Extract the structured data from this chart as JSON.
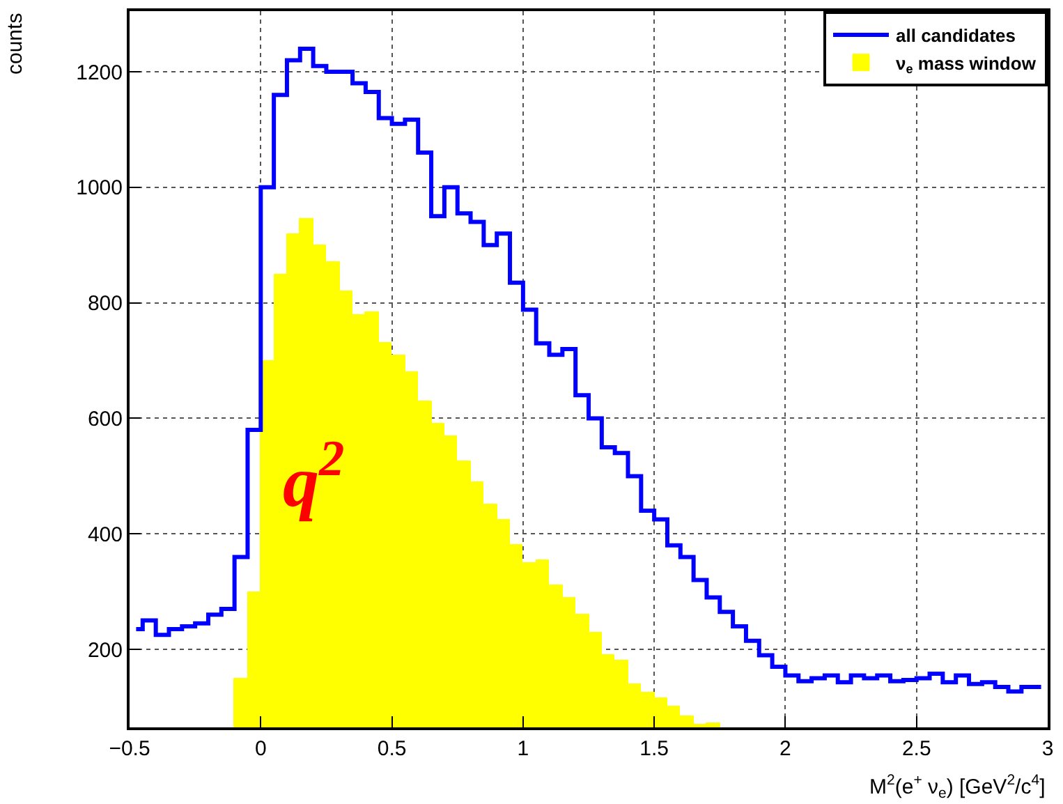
{
  "chart_data": {
    "type": "histogram",
    "xlabel": "M$^{2}$(e$^{+}$ ν$_{e}$) [GeV$^{2}$/c$^{4}$]",
    "ylabel": "counts",
    "bins": [
      -0.5,
      -0.45,
      -0.4,
      -0.35,
      -0.3,
      -0.25,
      -0.2,
      -0.15,
      -0.1,
      -0.05,
      0,
      0.05,
      0.1,
      0.15,
      0.2,
      0.25,
      0.3,
      0.35,
      0.4,
      0.45,
      0.5,
      0.55,
      0.6,
      0.65,
      0.7,
      0.75,
      0.8,
      0.85,
      0.9,
      0.95,
      1,
      1.05,
      1.1,
      1.15,
      1.2,
      1.25,
      1.3,
      1.35,
      1.4,
      1.45,
      1.5,
      1.55,
      1.6,
      1.65,
      1.7,
      1.75,
      1.8,
      1.85,
      1.9,
      1.95,
      2,
      2.05,
      2.1,
      2.15,
      2.2,
      2.25,
      2.3,
      2.35,
      2.4,
      2.45,
      2.5,
      2.55,
      2.6,
      2.65,
      2.7,
      2.75,
      2.8,
      2.85,
      2.9,
      2.95,
      3
    ],
    "series": [
      {
        "name": "all candidates",
        "type": "step",
        "color": "#0000ff",
        "x": [
          -0.475,
          -0.425,
          -0.375,
          -0.325,
          -0.275,
          -0.225,
          -0.175,
          -0.125,
          -0.075,
          -0.025,
          0.025,
          0.075,
          0.125,
          0.175,
          0.225,
          0.275,
          0.325,
          0.375,
          0.425,
          0.475,
          0.525,
          0.575,
          0.625,
          0.675,
          0.725,
          0.775,
          0.825,
          0.875,
          0.925,
          0.975,
          1.025,
          1.075,
          1.125,
          1.175,
          1.225,
          1.275,
          1.325,
          1.375,
          1.425,
          1.475,
          1.525,
          1.575,
          1.625,
          1.675,
          1.725,
          1.775,
          1.825,
          1.875,
          1.925,
          1.975,
          2.025,
          2.075,
          2.125,
          2.175,
          2.225,
          2.275,
          2.325,
          2.375,
          2.425,
          2.475,
          2.525,
          2.575,
          2.625,
          2.675,
          2.725,
          2.775,
          2.825,
          2.875,
          2.925,
          2.975
        ],
        "values": [
          235,
          250,
          225,
          235,
          240,
          245,
          260,
          270,
          360,
          580,
          1000,
          1160,
          1220,
          1240,
          1210,
          1200,
          1200,
          1180,
          1165,
          1120,
          1110,
          1117,
          1060,
          950,
          1000,
          955,
          940,
          900,
          920,
          835,
          788,
          730,
          710,
          720,
          640,
          600,
          550,
          540,
          500,
          440,
          425,
          380,
          360,
          320,
          290,
          265,
          240,
          215,
          190,
          170,
          155,
          145,
          150,
          155,
          143,
          155,
          150,
          155,
          145,
          147,
          150,
          158,
          143,
          155,
          140,
          143,
          135,
          127,
          135,
          135
        ]
      },
      {
        "name": "ν$_{e}$ mass window",
        "type": "histogram",
        "color": "#ffff00",
        "values": [
          null,
          null,
          null,
          null,
          null,
          null,
          null,
          null,
          150,
          300,
          700,
          850,
          920,
          945,
          900,
          870,
          820,
          780,
          785,
          730,
          710,
          680,
          630,
          590,
          570,
          525,
          490,
          450,
          425,
          380,
          350,
          355,
          310,
          290,
          260,
          230,
          190,
          180,
          140,
          125,
          115,
          100,
          85,
          70,
          73,
          null,
          null,
          null,
          null,
          null,
          null,
          null,
          null,
          null,
          null,
          null,
          null,
          null,
          null,
          null,
          null,
          null,
          null,
          null,
          null,
          null,
          null,
          null,
          null,
          null
        ]
      }
    ],
    "xlim": [
      -0.5,
      3
    ],
    "xticks": [
      {
        "value": -0.5,
        "label": "−0.5"
      },
      0,
      0.5,
      1,
      1.5,
      2,
      2.5,
      3
    ],
    "ylim": [
      65,
      1305
    ],
    "yticks": [
      200,
      400,
      600,
      800,
      1000,
      1200
    ],
    "grid": true,
    "legend": "top right",
    "annotations": [
      {
        "text": "q$^{2}$",
        "x": 0.2,
        "y": 500
      }
    ]
  }
}
